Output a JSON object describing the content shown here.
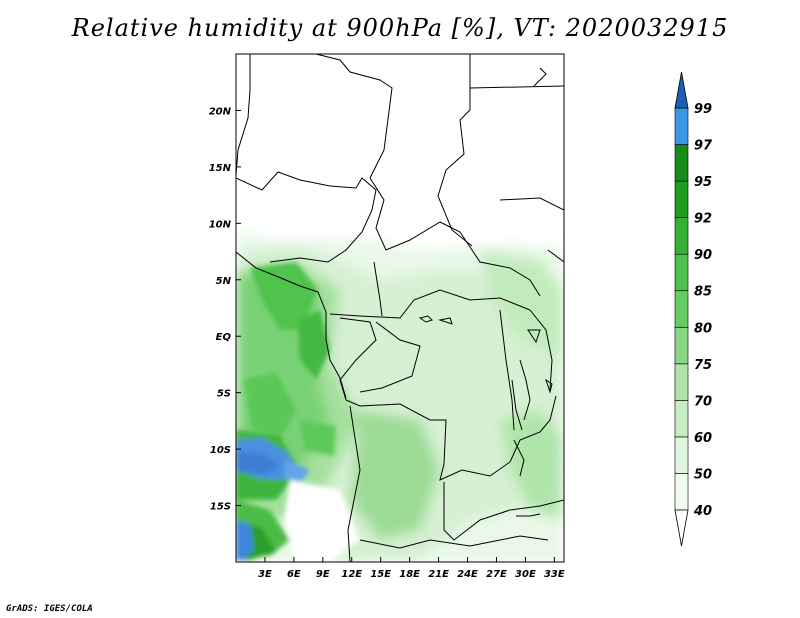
{
  "title": "Relative humidity at 900hPa [%], VT: 2020032915",
  "credit": "GrADS: IGES/COLA",
  "map": {
    "lon_range": [
      0,
      34
    ],
    "lat_range": [
      -20,
      25
    ],
    "lon_ticks": [
      {
        "value": 3,
        "label": "3E"
      },
      {
        "value": 6,
        "label": "6E"
      },
      {
        "value": 9,
        "label": "9E"
      },
      {
        "value": 12,
        "label": "12E"
      },
      {
        "value": 15,
        "label": "15E"
      },
      {
        "value": 18,
        "label": "18E"
      },
      {
        "value": 21,
        "label": "21E"
      },
      {
        "value": 24,
        "label": "24E"
      },
      {
        "value": 27,
        "label": "27E"
      },
      {
        "value": 30,
        "label": "30E"
      },
      {
        "value": 33,
        "label": "33E"
      }
    ],
    "lat_ticks": [
      {
        "value": 20,
        "label": "20N"
      },
      {
        "value": 15,
        "label": "15N"
      },
      {
        "value": 10,
        "label": "10N"
      },
      {
        "value": 5,
        "label": "5N"
      },
      {
        "value": 0,
        "label": "EQ"
      },
      {
        "value": -5,
        "label": "5S"
      },
      {
        "value": -10,
        "label": "10S"
      },
      {
        "value": -15,
        "label": "15S"
      }
    ]
  },
  "colorbar": {
    "levels": [
      {
        "label": "40",
        "color": "#f0fcf0"
      },
      {
        "label": "50",
        "color": "#e0f5e0"
      },
      {
        "label": "60",
        "color": "#c8ecc4"
      },
      {
        "label": "70",
        "color": "#aee4a8"
      },
      {
        "label": "75",
        "color": "#8ad886"
      },
      {
        "label": "80",
        "color": "#66cc64"
      },
      {
        "label": "85",
        "color": "#4cc24a"
      },
      {
        "label": "90",
        "color": "#34b034"
      },
      {
        "label": "92",
        "color": "#1e9e1e"
      },
      {
        "label": "95",
        "color": "#168c16"
      },
      {
        "label": "97",
        "color": "#3c96e6"
      },
      {
        "label": "99",
        "color": "#2a78d2"
      }
    ],
    "top_color": "#1e5fb4",
    "bottom_color": "#ffffff"
  }
}
